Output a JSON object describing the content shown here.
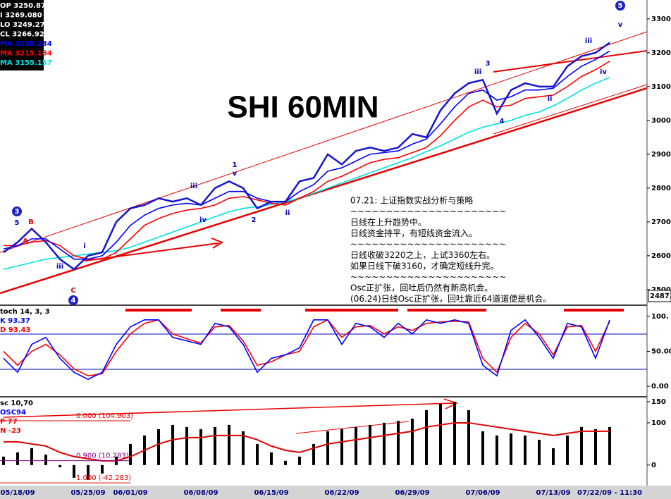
{
  "chart_data": [
    {
      "type": "line",
      "title": "SHI 60MIN",
      "categories": [
        null,
        "05/18/09",
        null,
        null,
        null,
        null,
        "05/25/09",
        null,
        null,
        "06/01/09",
        null,
        null,
        null,
        null,
        "06/08/09",
        null,
        null,
        null,
        null,
        "06/15/09",
        null,
        null,
        null,
        null,
        "06/22/09",
        null,
        null,
        null,
        null,
        "06/29/09",
        null,
        null,
        null,
        null,
        "07/06/09",
        null,
        null,
        null,
        null,
        "07/13/09",
        null,
        null,
        null,
        "07/22/09 - 11:30"
      ],
      "series": [
        {
          "color": "#1414d2",
          "values": [
            2610,
            2640,
            2680,
            2640,
            2590,
            2560,
            2600,
            2610,
            2700,
            2740,
            2750,
            2770,
            2760,
            2770,
            2750,
            2800,
            2820,
            2800,
            2740,
            2760,
            2760,
            2820,
            2830,
            2900,
            2870,
            2910,
            2920,
            2910,
            2920,
            2960,
            2950,
            3030,
            3080,
            3110,
            3120,
            3020,
            3090,
            3110,
            3100,
            3100,
            3160,
            3190,
            3200,
            3230
          ]
        },
        {
          "color": "#0000ff",
          "values": [
            2620,
            2630,
            2650,
            2650,
            2620,
            2590,
            2590,
            2600,
            2640,
            2690,
            2720,
            2740,
            2750,
            2755,
            2750,
            2770,
            2790,
            2790,
            2770,
            2760,
            2760,
            2790,
            2810,
            2850,
            2860,
            2880,
            2900,
            2905,
            2910,
            2930,
            2945,
            2990,
            3040,
            3080,
            3090,
            3060,
            3070,
            3090,
            3090,
            3095,
            3130,
            3160,
            3180,
            3205
          ]
        },
        {
          "color": "#ff0000",
          "values": [
            2630,
            2630,
            2640,
            2645,
            2630,
            2600,
            2590,
            2590,
            2610,
            2650,
            2690,
            2710,
            2725,
            2735,
            2740,
            2750,
            2770,
            2775,
            2765,
            2755,
            2750,
            2770,
            2790,
            2820,
            2835,
            2855,
            2875,
            2885,
            2890,
            2905,
            2920,
            2955,
            3000,
            3040,
            3060,
            3040,
            3045,
            3065,
            3070,
            3075,
            3100,
            3130,
            3150,
            3175
          ]
        },
        {
          "color": "#00e0e0",
          "values": [
            2560,
            2570,
            2580,
            2590,
            2595,
            2600,
            2605,
            2610,
            2615,
            2625,
            2640,
            2655,
            2670,
            2685,
            2700,
            2715,
            2730,
            2740,
            2745,
            2752,
            2760,
            2770,
            2785,
            2800,
            2815,
            2830,
            2845,
            2860,
            2875,
            2890,
            2908,
            2925,
            2945,
            2965,
            2980,
            2990,
            3000,
            3015,
            3025,
            3043,
            3065,
            3090,
            3110,
            3127
          ]
        }
      ],
      "ylim": [
        2456,
        3356
      ],
      "yticks": [
        {
          "value": 2500,
          "label": "2500."
        },
        {
          "value": 2600,
          "label": "2600."
        },
        {
          "value": 2700,
          "label": "2700."
        },
        {
          "value": 2800,
          "label": "2800."
        },
        {
          "value": 2900,
          "label": "2900."
        },
        {
          "value": 3000,
          "label": "3000."
        },
        {
          "value": 3100,
          "label": "3100."
        },
        {
          "value": 3200,
          "label": "3200."
        },
        {
          "value": 3300,
          "label": "3300."
        }
      ],
      "legend": [
        "OP 3250.870",
        "I 3269.080",
        "LO 3249.270",
        "CL 3266.920",
        "MA 3239.234",
        "MA 3215.164",
        "MA 3155.157"
      ],
      "last_label": "2487.",
      "wave_labels": [
        "3",
        "5",
        "B",
        "A",
        "iii",
        "i",
        "C",
        "4",
        "iv",
        "1",
        "v",
        "iii",
        "2",
        "ii",
        "3",
        "iii",
        "4",
        "ii",
        "iii",
        "iv",
        "5",
        "v"
      ],
      "annotation": [
        "07.21: 上证指数实战分析与策略",
        "~~~~~~~~~~~~~~~~~~~~~~",
        "日线在上升趋势中。",
        "日线资金持平，有短线资金流入。",
        "~~~~~~~~~~~~~~~~~~~~~~",
        "日线收破3220之上，上试3360左右。",
        "如果日线下破3160，才确定短线升完。",
        "~~~~~~~~~~~~~~~~~~~~~~",
        "Osc正扩张，回吐后仍然有新高机会。",
        "(06.24)日线Osc正扩张，回吐靠近64道道便是机会。"
      ]
    },
    {
      "type": "line",
      "header": [
        "toch 14, 3, 3",
        "K  93.37",
        "D  93.43"
      ],
      "series": [
        {
          "color": "#0000ff",
          "values": [
            40,
            20,
            60,
            70,
            40,
            20,
            10,
            20,
            60,
            85,
            95,
            95,
            70,
            65,
            60,
            90,
            85,
            60,
            20,
            40,
            45,
            55,
            95,
            95,
            60,
            90,
            85,
            70,
            90,
            75,
            95,
            90,
            95,
            90,
            30,
            15,
            80,
            95,
            70,
            40,
            90,
            85,
            40,
            95
          ]
        },
        {
          "color": "#ff0000",
          "values": [
            50,
            30,
            50,
            60,
            45,
            25,
            15,
            18,
            50,
            75,
            90,
            95,
            75,
            68,
            62,
            85,
            87,
            65,
            30,
            35,
            45,
            50,
            85,
            95,
            70,
            85,
            87,
            75,
            85,
            80,
            90,
            92,
            93,
            92,
            40,
            20,
            70,
            90,
            75,
            45,
            85,
            87,
            50,
            93
          ]
        }
      ],
      "ylim": [
        -14,
        115
      ],
      "yticks": [
        {
          "value": 0,
          "label": "0.00"
        },
        {
          "value": 50,
          "label": "50.00"
        },
        {
          "value": 100,
          "label": "100."
        }
      ]
    },
    {
      "type": "bar",
      "header": [
        "sc 10,70",
        "OSC94",
        "P  77",
        "N  -23"
      ],
      "color": "#000000",
      "values": [
        20,
        30,
        40,
        25,
        -5,
        -30,
        -35,
        -20,
        20,
        50,
        70,
        85,
        95,
        90,
        85,
        90,
        95,
        80,
        50,
        30,
        10,
        20,
        50,
        80,
        85,
        90,
        95,
        100,
        105,
        110,
        130,
        145,
        150,
        130,
        80,
        70,
        75,
        70,
        60,
        40,
        70,
        90,
        85,
        90
      ],
      "series": [
        {
          "color": "#e00000",
          "values": [
            55,
            55,
            50,
            45,
            30,
            20,
            15,
            10,
            10,
            20,
            35,
            50,
            60,
            65,
            65,
            70,
            70,
            70,
            60,
            45,
            35,
            30,
            40,
            50,
            55,
            60,
            65,
            70,
            75,
            80,
            90,
            95,
            100,
            100,
            95,
            90,
            85,
            80,
            75,
            70,
            75,
            80,
            80,
            80
          ]
        }
      ],
      "levels": [
        {
          "value": 104.903,
          "label": "0.000 (104.903)"
        },
        {
          "value": 10.283,
          "label": "0.900 (10.283)"
        },
        {
          "value": -42.283,
          "label": "1.000 (-42.283)"
        }
      ],
      "ylim": [
        -47,
        160
      ],
      "yticks": [
        0,
        100,
        150
      ]
    }
  ]
}
